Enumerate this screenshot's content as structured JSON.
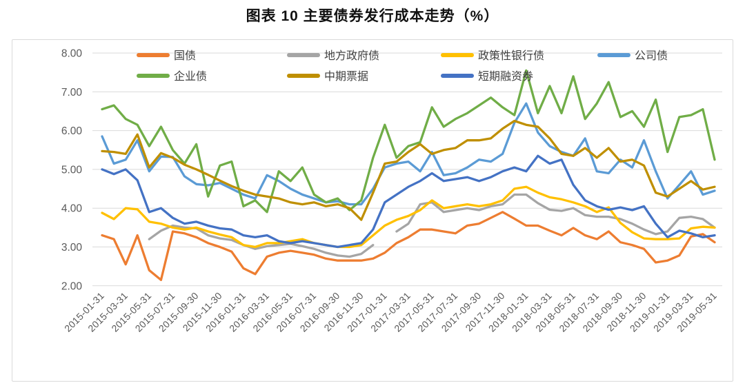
{
  "page": {
    "title": "图表 10 主要债券发行成本走势（%）"
  },
  "chart_data": {
    "type": "line",
    "title": "图表 10 主要债券发行成本走势（%）",
    "xlabel": "",
    "ylabel": "",
    "ylim": [
      2,
      8
    ],
    "y_tick_interval": 1,
    "y_tick_decimals": 2,
    "grid": "horizontal",
    "legend_position": "top",
    "axis_label_color": "#595959",
    "grid_color": "#d9d9d9",
    "x_labels_shown_every": 2,
    "x": [
      "2015-01-31",
      "2015-02-28",
      "2015-03-31",
      "2015-04-30",
      "2015-05-31",
      "2015-06-30",
      "2015-07-31",
      "2015-08-31",
      "2015-09-30",
      "2015-10-31",
      "2015-11-30",
      "2015-12-31",
      "2016-01-31",
      "2016-02-29",
      "2016-03-31",
      "2016-04-30",
      "2016-05-31",
      "2016-06-30",
      "2016-07-31",
      "2016-08-31",
      "2016-09-30",
      "2016-10-31",
      "2016-11-30",
      "2016-12-31",
      "2017-01-31",
      "2017-02-28",
      "2017-03-31",
      "2017-04-30",
      "2017-05-31",
      "2017-06-30",
      "2017-07-31",
      "2017-08-31",
      "2017-09-30",
      "2017-10-31",
      "2017-11-30",
      "2017-12-31",
      "2018-01-31",
      "2018-02-28",
      "2018-03-31",
      "2018-04-30",
      "2018-05-31",
      "2018-06-30",
      "2018-07-31",
      "2018-08-31",
      "2018-09-30",
      "2018-10-31",
      "2018-11-30",
      "2018-12-31",
      "2019-01-31",
      "2019-02-28",
      "2019-03-31",
      "2019-04-30",
      "2019-05-31"
    ],
    "series": [
      {
        "name": "国债",
        "color": "#ED7D31",
        "values": [
          3.3,
          3.2,
          2.55,
          3.3,
          2.4,
          2.15,
          3.4,
          3.35,
          3.25,
          3.1,
          3.0,
          2.88,
          2.45,
          2.3,
          2.75,
          2.85,
          2.9,
          2.85,
          2.8,
          2.7,
          2.65,
          2.65,
          2.65,
          2.7,
          2.85,
          3.1,
          3.25,
          3.45,
          3.45,
          3.4,
          3.35,
          3.55,
          3.6,
          3.75,
          3.9,
          3.73,
          3.55,
          3.55,
          3.42,
          3.3,
          3.49,
          3.3,
          3.2,
          3.4,
          3.12,
          3.05,
          2.95,
          2.6,
          2.65,
          2.78,
          3.27,
          3.33,
          3.12
        ]
      },
      {
        "name": "地方政府债",
        "color": "#A5A5A5",
        "values": [
          null,
          null,
          null,
          null,
          3.2,
          3.42,
          3.55,
          3.5,
          3.48,
          3.3,
          3.22,
          3.18,
          3.05,
          2.95,
          3.02,
          3.05,
          3.08,
          3.02,
          2.95,
          2.85,
          2.78,
          2.75,
          2.82,
          3.05,
          null,
          3.4,
          3.6,
          4.1,
          4.15,
          3.9,
          3.95,
          4.0,
          3.95,
          4.05,
          4.1,
          4.35,
          4.35,
          4.13,
          3.96,
          3.93,
          4.0,
          3.82,
          3.78,
          3.78,
          3.72,
          3.6,
          3.45,
          3.33,
          3.4,
          3.75,
          3.78,
          3.72,
          3.5
        ]
      },
      {
        "name": "政策性银行债",
        "color": "#FFC000",
        "values": [
          3.88,
          3.72,
          4.0,
          3.97,
          3.65,
          3.6,
          3.5,
          3.45,
          3.5,
          3.4,
          3.32,
          3.25,
          3.05,
          3.0,
          3.1,
          3.1,
          3.15,
          3.2,
          3.1,
          3.05,
          3.0,
          3.0,
          3.05,
          3.3,
          3.55,
          3.7,
          3.8,
          3.95,
          4.2,
          4.0,
          4.05,
          4.1,
          4.05,
          4.1,
          4.2,
          4.5,
          4.55,
          4.4,
          4.28,
          4.23,
          4.15,
          4.05,
          3.9,
          4.02,
          3.62,
          3.38,
          3.22,
          3.2,
          3.2,
          3.22,
          3.48,
          3.52,
          3.5
        ]
      },
      {
        "name": "公司债",
        "color": "#5B9BD5",
        "values": [
          5.85,
          5.15,
          5.25,
          5.75,
          4.95,
          5.33,
          5.32,
          4.82,
          4.62,
          4.59,
          4.65,
          4.5,
          4.35,
          4.25,
          4.85,
          4.7,
          4.5,
          4.35,
          4.25,
          4.15,
          4.18,
          4.1,
          4.1,
          4.5,
          5.05,
          5.15,
          5.2,
          4.95,
          5.45,
          4.85,
          4.9,
          5.05,
          5.25,
          5.2,
          5.4,
          6.2,
          6.7,
          5.95,
          5.6,
          5.45,
          5.35,
          5.8,
          4.95,
          4.9,
          5.25,
          5.05,
          5.75,
          4.95,
          4.25,
          4.6,
          4.95,
          4.35,
          4.45
        ]
      },
      {
        "name": "企业债",
        "color": "#70AD47",
        "values": [
          6.55,
          6.65,
          6.3,
          6.15,
          5.6,
          6.1,
          5.5,
          5.15,
          5.65,
          4.3,
          5.1,
          5.2,
          4.05,
          4.2,
          3.9,
          4.95,
          4.7,
          5.05,
          4.35,
          4.15,
          4.25,
          3.95,
          4.2,
          5.3,
          6.15,
          5.3,
          5.6,
          5.7,
          6.6,
          6.1,
          6.3,
          6.45,
          6.65,
          6.85,
          6.6,
          6.4,
          7.55,
          6.45,
          7.15,
          6.45,
          7.4,
          6.3,
          6.7,
          7.25,
          6.35,
          6.5,
          6.1,
          6.8,
          5.45,
          6.35,
          6.4,
          6.55,
          5.25
        ]
      },
      {
        "name": "中期票据",
        "color": "#BF8F00",
        "values": [
          5.47,
          5.45,
          5.4,
          5.9,
          5.05,
          5.42,
          5.3,
          5.12,
          5.0,
          4.86,
          4.71,
          4.57,
          4.45,
          4.35,
          4.3,
          4.25,
          4.15,
          4.1,
          4.15,
          4.05,
          4.1,
          4.0,
          3.7,
          4.4,
          5.15,
          5.2,
          5.45,
          5.65,
          5.4,
          5.5,
          5.55,
          5.75,
          5.75,
          5.8,
          6.05,
          6.25,
          6.15,
          6.1,
          5.8,
          5.4,
          5.35,
          5.55,
          5.3,
          5.55,
          5.2,
          5.25,
          5.1,
          4.4,
          4.3,
          4.5,
          4.7,
          4.48,
          4.55
        ]
      },
      {
        "name": "短期融资券",
        "color": "#4472C4",
        "values": [
          5.0,
          4.88,
          5.0,
          4.72,
          3.9,
          4.0,
          3.75,
          3.6,
          3.65,
          3.55,
          3.48,
          3.45,
          3.3,
          3.25,
          3.3,
          3.15,
          3.1,
          3.15,
          3.1,
          3.05,
          3.0,
          3.05,
          3.1,
          3.45,
          4.15,
          4.35,
          4.55,
          4.7,
          4.9,
          4.7,
          4.75,
          4.8,
          4.7,
          4.8,
          4.95,
          5.05,
          4.95,
          5.35,
          5.15,
          5.25,
          4.6,
          4.2,
          4.05,
          3.96,
          4.02,
          3.95,
          4.05,
          3.6,
          3.25,
          3.42,
          3.35,
          3.25,
          3.3
        ]
      }
    ],
    "legend_rows": [
      [
        0,
        1,
        2,
        3
      ],
      [
        4,
        5,
        6
      ]
    ]
  }
}
